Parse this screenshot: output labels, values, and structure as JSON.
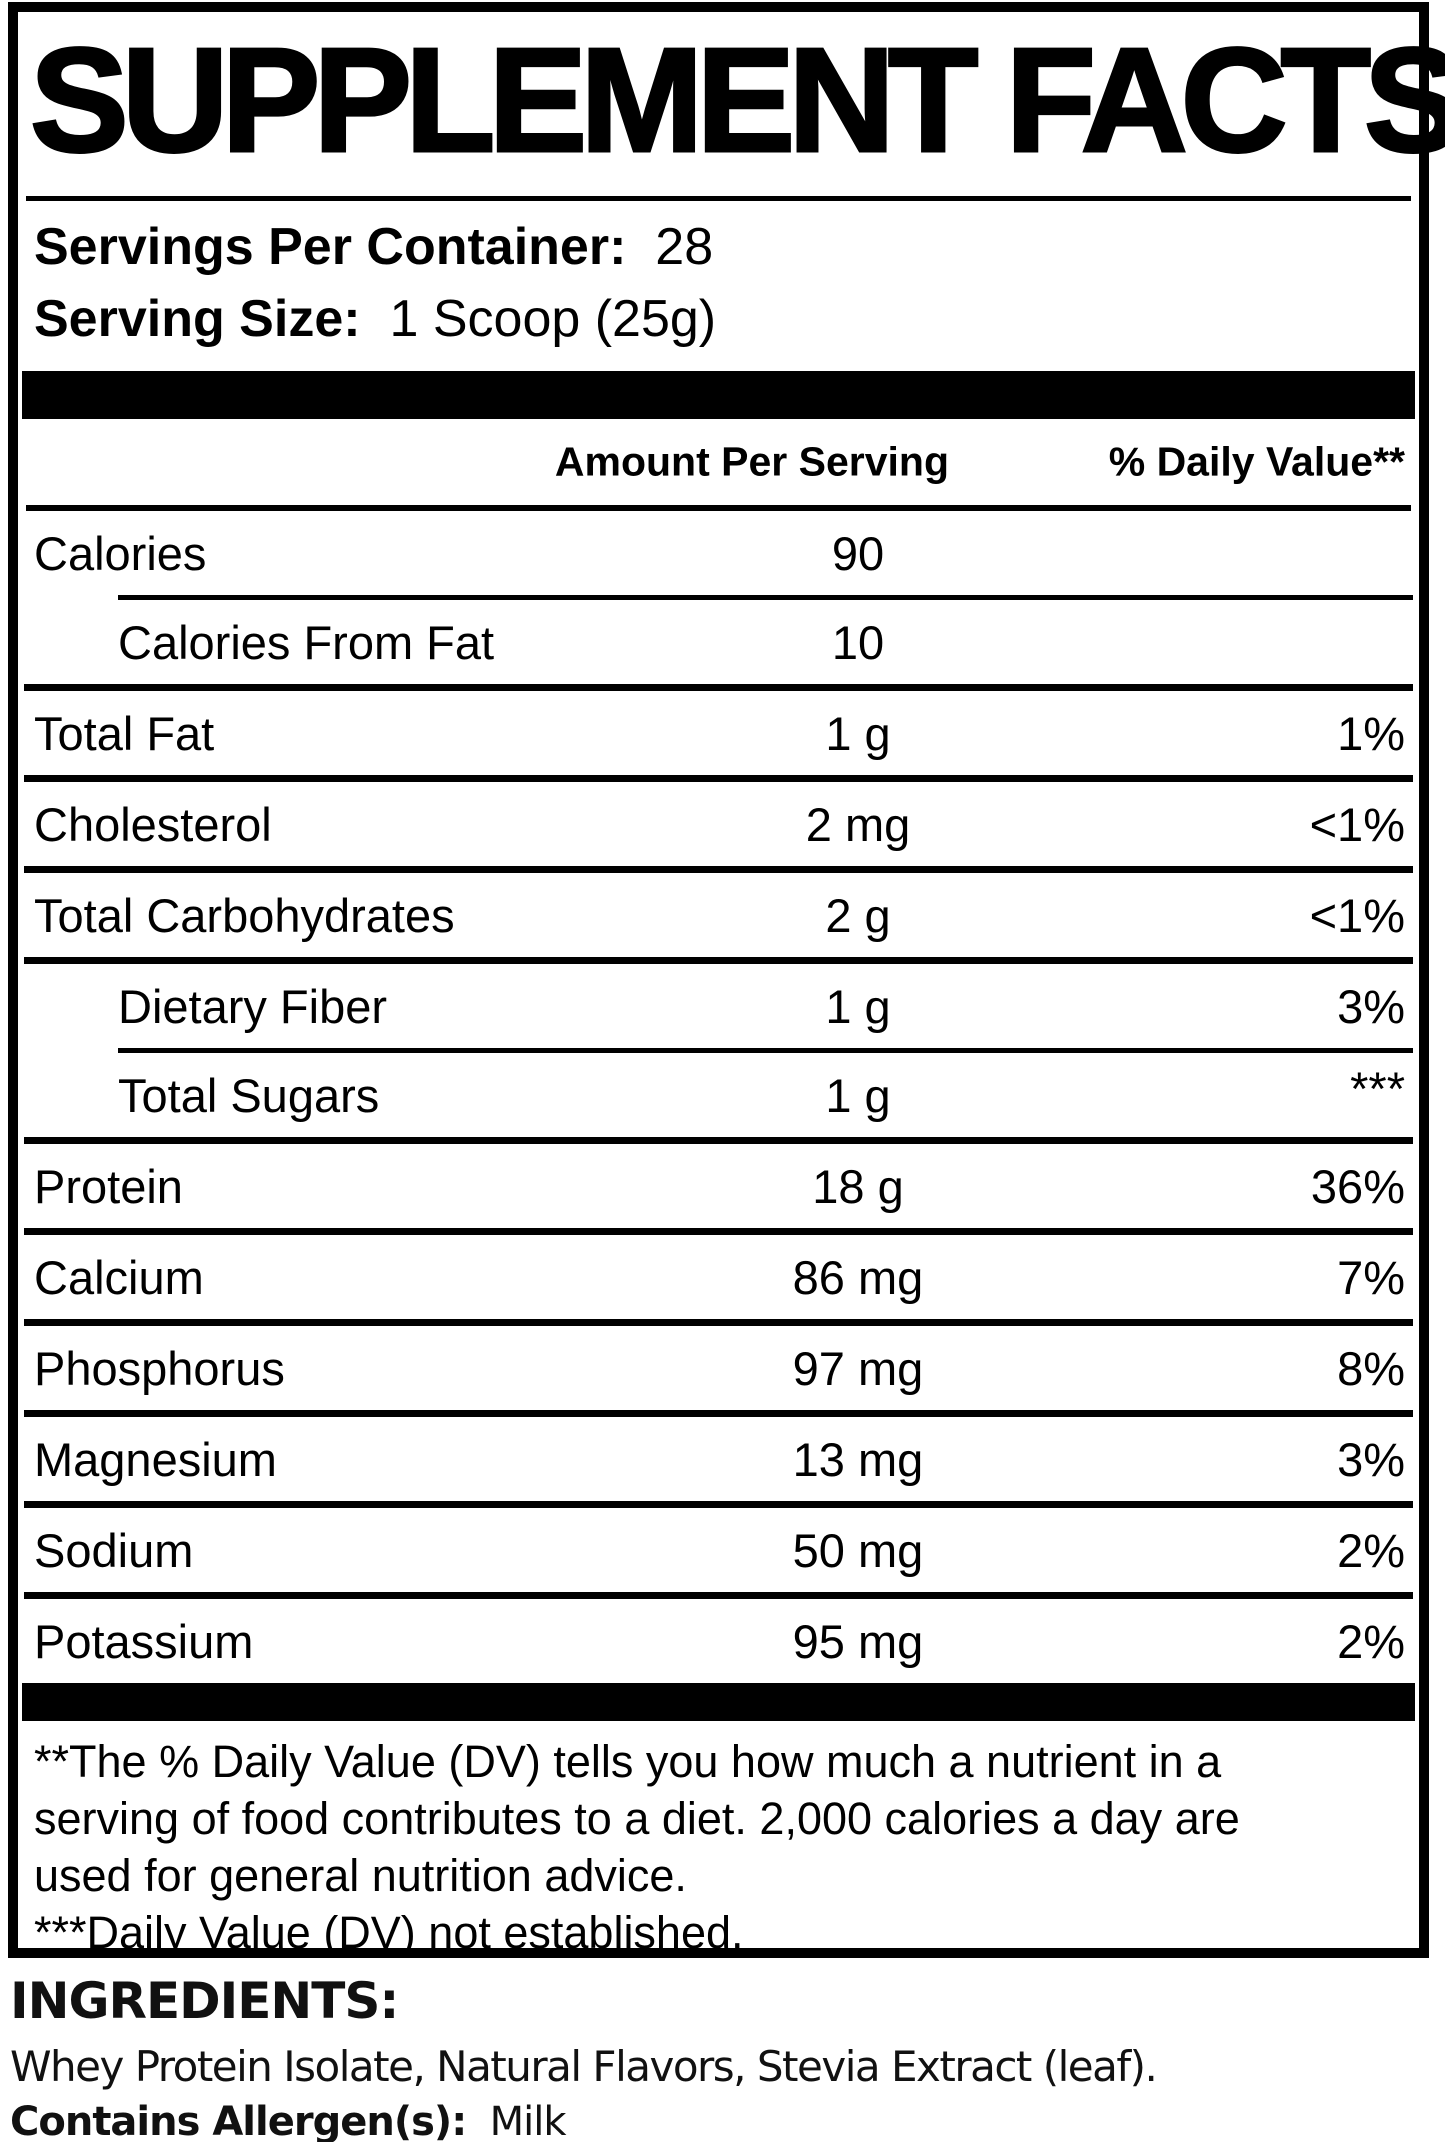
{
  "title": "SUPPLEMENT FACTS",
  "serving": {
    "servings_per_container_label": "Servings Per Container:",
    "servings_per_container_value": "28",
    "serving_size_label": "Serving Size:",
    "serving_size_value": "1 Scoop (25g)"
  },
  "table": {
    "amount_header": "Amount Per Serving",
    "dv_header": "% Daily Value**",
    "rows": [
      {
        "name": "Calories",
        "amount": "90",
        "dv": "",
        "indent": false,
        "sep_above": "none"
      },
      {
        "name": "Calories From Fat",
        "amount": "10",
        "dv": "",
        "indent": true,
        "sep_above": "indented"
      },
      {
        "name": "Total Fat",
        "amount": "1 g",
        "dv": "1%",
        "indent": false,
        "sep_above": "full"
      },
      {
        "name": "Cholesterol",
        "amount": "2 mg",
        "dv": "<1%",
        "indent": false,
        "sep_above": "full"
      },
      {
        "name": "Total Carbohydrates",
        "amount": "2 g",
        "dv": "<1%",
        "indent": false,
        "sep_above": "full"
      },
      {
        "name": "Dietary Fiber",
        "amount": "1 g",
        "dv": "3%",
        "indent": true,
        "sep_above": "full"
      },
      {
        "name": "Total Sugars",
        "amount": "1 g",
        "dv": "***",
        "dv_top": true,
        "indent": true,
        "sep_above": "indented"
      },
      {
        "name": "Protein",
        "amount": "18 g",
        "dv": "36%",
        "indent": false,
        "sep_above": "full"
      },
      {
        "name": "Calcium",
        "amount": "86 mg",
        "dv": "7%",
        "indent": false,
        "sep_above": "full"
      },
      {
        "name": "Phosphorus",
        "amount": "97 mg",
        "dv": "8%",
        "indent": false,
        "sep_above": "full"
      },
      {
        "name": "Magnesium",
        "amount": "13 mg",
        "dv": "3%",
        "indent": false,
        "sep_above": "full"
      },
      {
        "name": "Sodium",
        "amount": "50 mg",
        "dv": "2%",
        "indent": false,
        "sep_above": "full"
      },
      {
        "name": "Potassium",
        "amount": "95 mg",
        "dv": "2%",
        "indent": false,
        "sep_above": "full"
      }
    ]
  },
  "footnotes": [
    "**The % Daily Value (DV) tells you how much a nutrient in a",
    "serving of food contributes to a diet. 2,000 calories a day are",
    "used for general nutrition advice.",
    "***Daily Value (DV) not established."
  ],
  "ingredients": {
    "heading": "INGREDIENTS:",
    "list": "Whey Protein Isolate, Natural Flavors, Stevia Extract (leaf).",
    "allergen_label": "Contains Allergen(s):",
    "allergen_value": "Milk"
  },
  "colors": {
    "ink": "#000000",
    "paper": "#ffffff"
  }
}
